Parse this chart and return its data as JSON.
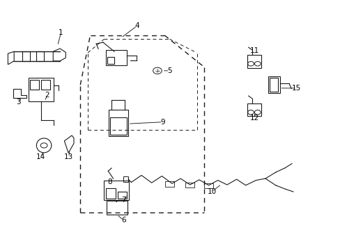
{
  "bg_color": "#ffffff",
  "line_color": "#1a1a1a",
  "label_color": "#000000",
  "fig_width": 4.89,
  "fig_height": 3.6,
  "dpi": 100
}
